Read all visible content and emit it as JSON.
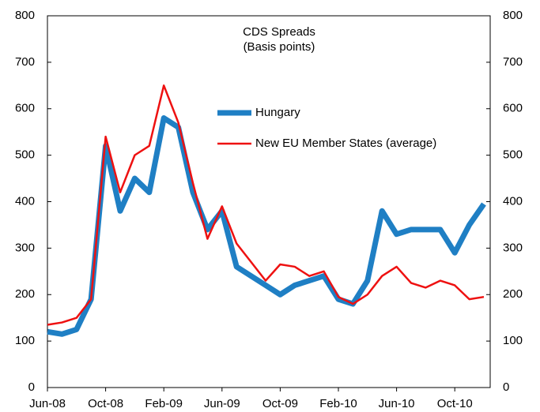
{
  "chart_data": {
    "type": "line",
    "title": "CDS Spreads",
    "subtitle": "(Basis points)",
    "x": [
      "Jun-08",
      "Jul-08",
      "Aug-08",
      "Sep-08",
      "Oct-08",
      "Nov-08",
      "Dec-08",
      "Jan-09",
      "Feb-09",
      "Mar-09",
      "Apr-09",
      "May-09",
      "Jun-09",
      "Jul-09",
      "Aug-09",
      "Sep-09",
      "Oct-09",
      "Nov-09",
      "Dec-09",
      "Jan-10",
      "Feb-10",
      "Mar-10",
      "Apr-10",
      "May-10",
      "Jun-10",
      "Jul-10",
      "Aug-10",
      "Sep-10",
      "Oct-10",
      "Nov-10",
      "Dec-10"
    ],
    "xticks": [
      "Jun-08",
      "Oct-08",
      "Feb-09",
      "Jun-09",
      "Oct-09",
      "Feb-10",
      "Jun-10",
      "Oct-10"
    ],
    "series": [
      {
        "name": "Hungary",
        "color": "#1f7fc4",
        "values": [
          120,
          115,
          125,
          190,
          520,
          380,
          450,
          420,
          580,
          560,
          420,
          340,
          380,
          260,
          240,
          220,
          200,
          220,
          230,
          240,
          190,
          180,
          230,
          380,
          330,
          340,
          340,
          340,
          290,
          350,
          395
        ]
      },
      {
        "name": "New EU Member States (average)",
        "color": "#ee1111",
        "values": [
          135,
          140,
          150,
          190,
          540,
          420,
          500,
          520,
          650,
          570,
          440,
          320,
          390,
          310,
          270,
          230,
          265,
          260,
          240,
          250,
          195,
          180,
          200,
          240,
          260,
          225,
          215,
          230,
          220,
          190,
          195
        ]
      }
    ],
    "ylim": [
      0,
      800
    ],
    "yticks": [
      0,
      100,
      200,
      300,
      400,
      500,
      600,
      700,
      800
    ],
    "y2lim": [
      0,
      800
    ],
    "y2ticks": [
      0,
      100,
      200,
      300,
      400,
      500,
      600,
      700,
      800
    ]
  }
}
